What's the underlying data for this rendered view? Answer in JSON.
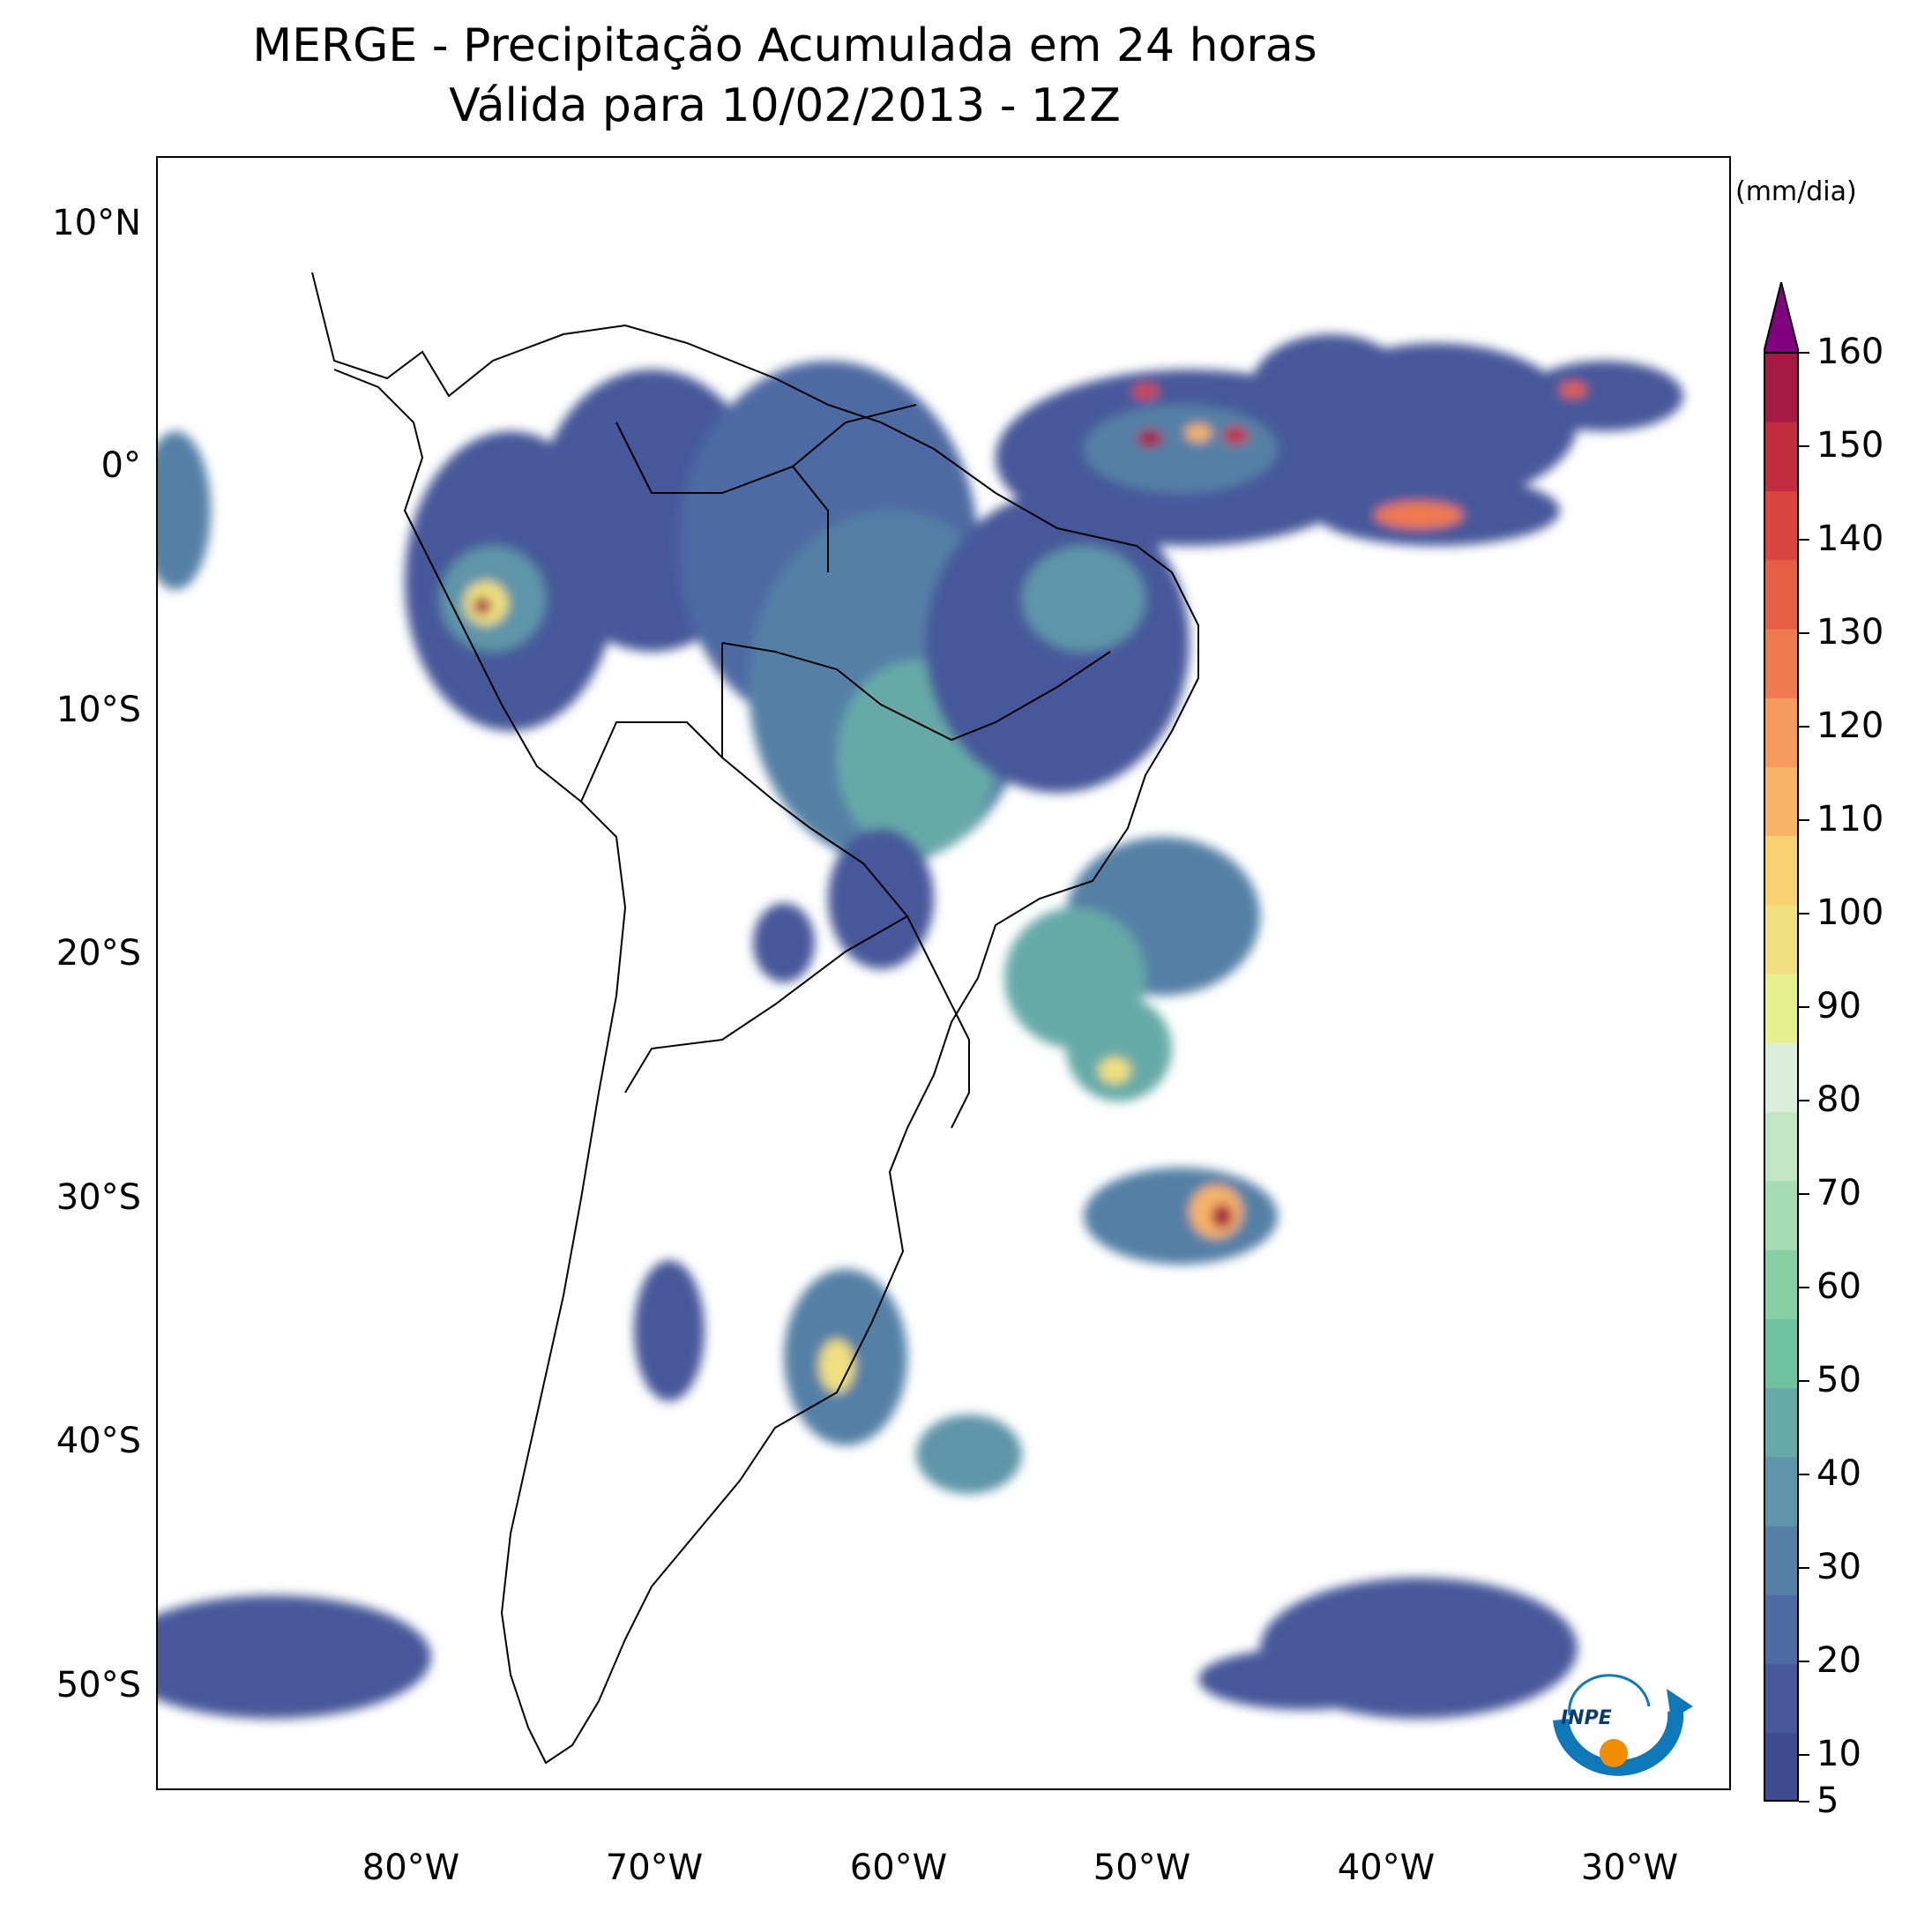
{
  "title": {
    "line1": "MERGE - Precipitação Acumulada em 24 horas",
    "line2": "Válida para 10/02/2013 - 12Z"
  },
  "axes": {
    "lat_ticks": [
      "10°N",
      "0°",
      "10°S",
      "20°S",
      "30°S",
      "40°S",
      "50°S"
    ],
    "lon_ticks": [
      "80°W",
      "70°W",
      "60°W",
      "50°W",
      "40°W",
      "30°W"
    ]
  },
  "colorbar": {
    "unit": "(mm/dia)",
    "ticks": [
      "5",
      "10",
      "20",
      "30",
      "40",
      "50",
      "60",
      "70",
      "80",
      "90",
      "100",
      "110",
      "120",
      "130",
      "140",
      "150",
      "160"
    ],
    "colors": [
      "#3f4a8f",
      "#47599a",
      "#4d6aa3",
      "#5580a6",
      "#5e95a8",
      "#66aaa7",
      "#6fc3a0",
      "#87cfa5",
      "#a6dcb3",
      "#c3e7c4",
      "#dbeed9",
      "#e6f08f",
      "#f0e07f",
      "#f8d271",
      "#f7b466",
      "#f59a5c",
      "#f07a4f",
      "#e65f45",
      "#d9453e",
      "#c22c3f",
      "#a51a43",
      "#800080"
    ]
  },
  "logo": {
    "text": "INPE"
  }
}
